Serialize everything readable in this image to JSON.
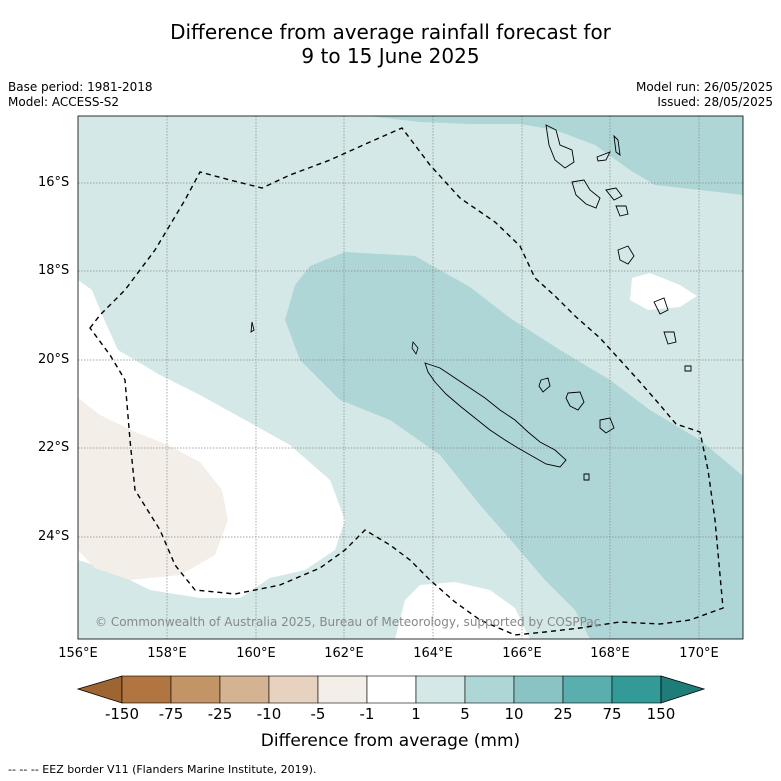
{
  "title_line1": "Difference from average rainfall forecast for",
  "title_line2": "9 to 15 June 2025",
  "base_period": "Base period: 1981-2018",
  "model": "Model: ACCESS-S2",
  "model_run": "Model run: 26/05/2025",
  "issued": "Issued: 28/05/2025",
  "copyright": "© Commonwealth of Australia 2025, Bureau of Meteorology, supported by COSPPac",
  "footer": "--  --  -- EEZ border V11 (Flanders Marine Institute, 2019).",
  "colorbar_title": "Difference from average (mm)",
  "lat_ticks": [
    "16°S",
    "18°S",
    "20°S",
    "22°S",
    "24°S"
  ],
  "lon_ticks": [
    "156°E",
    "158°E",
    "160°E",
    "162°E",
    "164°E",
    "166°E",
    "168°E",
    "170°E"
  ],
  "colorbar": {
    "tick_labels": [
      "-150",
      "-75",
      "-25",
      "-10",
      "-5",
      "-1",
      "1",
      "5",
      "10",
      "25",
      "75",
      "150"
    ],
    "colors": [
      "#9e6532",
      "#b07540",
      "#c39466",
      "#d4b393",
      "#e6d2bf",
      "#f3eee7",
      "#ffffff",
      "#d4e8e7",
      "#afd6d6",
      "#8ac3c3",
      "#5aaeae",
      "#339a97",
      "#1e7d79"
    ]
  },
  "map_colors": {
    "light_teal": "#d4e8e7",
    "mid_teal": "#afd6d6",
    "white": "#ffffff",
    "beige": "#f3eee7",
    "eez": "#000000"
  },
  "legend_note": "EEZ border"
}
